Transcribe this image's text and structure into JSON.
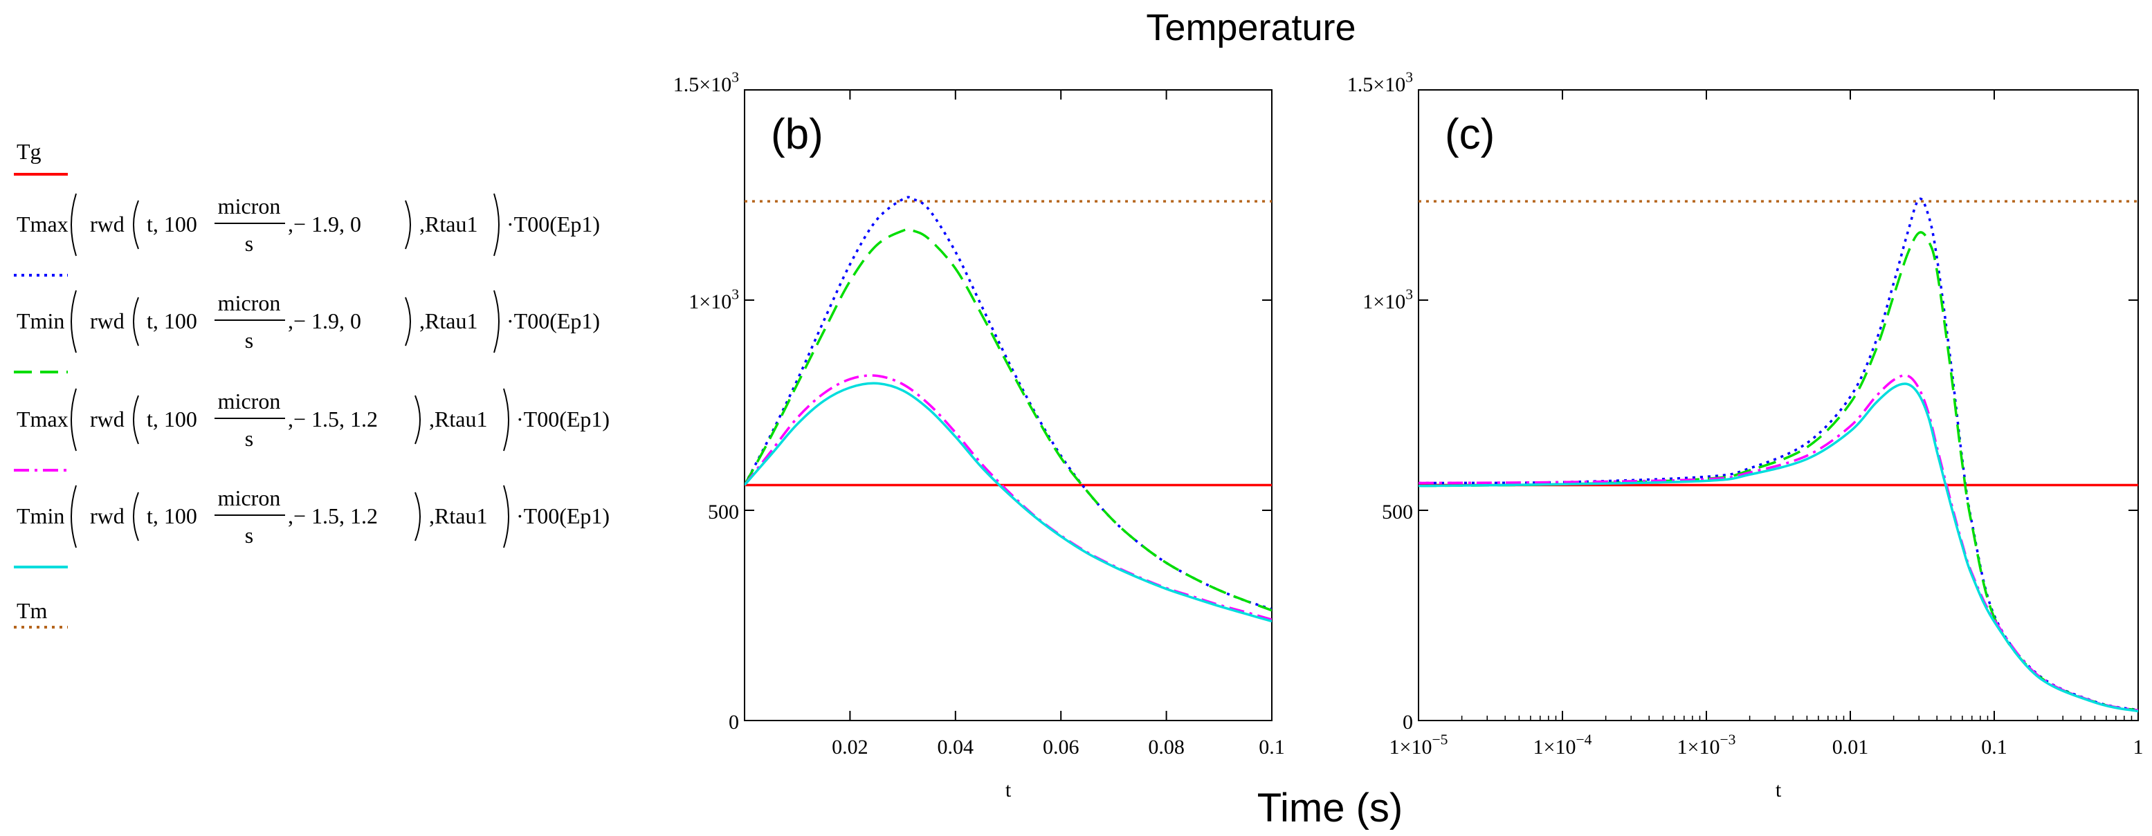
{
  "figure": {
    "title": "Temperature",
    "shared_xlabel": "Time (s)"
  },
  "legend": [
    {
      "label": "Tg",
      "color": "#ff0000",
      "dash": "solid",
      "expr": null
    },
    {
      "label": "Tmax(rwd(t, 100 micron/s, − 1.9, 0), Rtau1)·T00(Ep1)",
      "color": "#0000ff",
      "dash": "dot",
      "expr": {
        "fn": "Tmax",
        "a": "− 1.9",
        "b": "0"
      }
    },
    {
      "label": "Tmin(rwd(t, 100 micron/s, − 1.9, 0), Rtau1)·T00(Ep1)",
      "color": "#00dd00",
      "dash": "dash",
      "expr": {
        "fn": "Tmin",
        "a": "− 1.9",
        "b": "0"
      }
    },
    {
      "label": "Tmax(rwd(t, 100 micron/s, − 1.5, 1.2), Rtau1)·T00(Ep1)",
      "color": "#ff00ff",
      "dash": "dashdot",
      "expr": {
        "fn": "Tmax",
        "a": "− 1.5",
        "b": "1.2"
      }
    },
    {
      "label": "Tmin(rwd(t, 100 micron/s, − 1.5, 1.2), Rtau1)·T00(Ep1)",
      "color": "#00dddd",
      "dash": "solid",
      "expr": {
        "fn": "Tmin",
        "a": "− 1.5",
        "b": "1.2"
      }
    },
    {
      "label": "Tm",
      "color": "#b5651d",
      "dash": "dot",
      "expr": null
    }
  ],
  "expr_parts": {
    "rwd": "rwd",
    "t": "t, 100",
    "num": "micron",
    "den": "s",
    "rtau": "Rtau1",
    "t00": "·T00(Ep1)"
  },
  "colors": {
    "Tg": "#ff0000",
    "Tmax1": "#0000ff",
    "Tmin1": "#00dd00",
    "Tmax2": "#ff00ff",
    "Tmin2": "#00dddd",
    "Tm": "#b5651d"
  },
  "chart_data": [
    {
      "type": "line",
      "panel_label": "(b)",
      "xscale": "linear",
      "xlim": [
        0,
        0.1
      ],
      "ylim": [
        0,
        1500
      ],
      "xlabel": "t",
      "xticks": [
        0.02,
        0.04,
        0.06,
        0.08,
        0.1
      ],
      "xtick_labels": [
        "0.02",
        "0.04",
        "0.06",
        "0.08",
        "0.1"
      ],
      "yticks": [
        0,
        500,
        1000,
        1500
      ],
      "ytick_labels": [
        {
          "main": "0",
          "sup": ""
        },
        {
          "main": "500",
          "sup": ""
        },
        {
          "main": "1×10",
          "sup": "3"
        },
        {
          "main": "1.5×10",
          "sup": "3"
        }
      ],
      "series": [
        {
          "name": "Tg",
          "x": [
            0,
            0.1
          ],
          "y": [
            560,
            560
          ]
        },
        {
          "name": "Tm",
          "x": [
            0,
            0.1
          ],
          "y": [
            1235,
            1235
          ]
        },
        {
          "name": "Tmax(-1.9,0)",
          "x": [
            0,
            0.005,
            0.01,
            0.015,
            0.02,
            0.025,
            0.03,
            0.032,
            0.035,
            0.04,
            0.045,
            0.05,
            0.055,
            0.06,
            0.065,
            0.07,
            0.075,
            0.08,
            0.085,
            0.09,
            0.095,
            0.1
          ],
          "y": [
            560,
            680,
            810,
            950,
            1085,
            1190,
            1240,
            1240,
            1215,
            1115,
            985,
            855,
            735,
            630,
            545,
            475,
            420,
            375,
            340,
            310,
            285,
            265
          ]
        },
        {
          "name": "Tmin(-1.9,0)",
          "x": [
            0,
            0.005,
            0.01,
            0.015,
            0.02,
            0.025,
            0.03,
            0.032,
            0.035,
            0.04,
            0.045,
            0.05,
            0.055,
            0.06,
            0.065,
            0.07,
            0.075,
            0.08,
            0.085,
            0.09,
            0.095,
            0.1
          ],
          "y": [
            560,
            675,
            800,
            925,
            1045,
            1130,
            1165,
            1165,
            1145,
            1075,
            965,
            845,
            730,
            625,
            545,
            475,
            420,
            375,
            340,
            310,
            285,
            262
          ]
        },
        {
          "name": "Tmax(-1.5,1.2)",
          "x": [
            0,
            0.005,
            0.01,
            0.015,
            0.02,
            0.025,
            0.03,
            0.035,
            0.04,
            0.045,
            0.05,
            0.055,
            0.06,
            0.065,
            0.07,
            0.075,
            0.08,
            0.085,
            0.09,
            0.095,
            0.1
          ],
          "y": [
            560,
            640,
            720,
            778,
            812,
            820,
            800,
            752,
            685,
            610,
            545,
            487,
            440,
            400,
            368,
            340,
            315,
            295,
            275,
            258,
            240
          ]
        },
        {
          "name": "Tmin(-1.5,1.2)",
          "x": [
            0,
            0.005,
            0.01,
            0.015,
            0.02,
            0.025,
            0.03,
            0.035,
            0.04,
            0.045,
            0.05,
            0.055,
            0.06,
            0.065,
            0.07,
            0.075,
            0.08,
            0.085,
            0.09,
            0.095,
            0.1
          ],
          "y": [
            560,
            632,
            705,
            760,
            792,
            802,
            785,
            740,
            675,
            602,
            540,
            485,
            438,
            398,
            366,
            338,
            313,
            292,
            272,
            254,
            236
          ]
        }
      ]
    },
    {
      "type": "line",
      "panel_label": "(c)",
      "xscale": "log",
      "xlim": [
        1e-05,
        1
      ],
      "ylim": [
        0,
        1500
      ],
      "xlabel": "t",
      "xticks": [
        1e-05,
        0.0001,
        0.001,
        0.01,
        0.1,
        1
      ],
      "xtick_labels": [
        {
          "main": "1×10",
          "sup": "−5"
        },
        {
          "main": "1×10",
          "sup": "−4"
        },
        {
          "main": "1×10",
          "sup": "−3"
        },
        {
          "main": "0.01",
          "sup": ""
        },
        {
          "main": "0.1",
          "sup": ""
        },
        {
          "main": "1",
          "sup": ""
        }
      ],
      "yticks": [
        0,
        500,
        1000,
        1500
      ],
      "ytick_labels": [
        {
          "main": "0",
          "sup": ""
        },
        {
          "main": "500",
          "sup": ""
        },
        {
          "main": "1×10",
          "sup": "3"
        },
        {
          "main": "1.5×10",
          "sup": "3"
        }
      ],
      "series": [
        {
          "name": "Tg",
          "x": [
            1e-05,
            1
          ],
          "y": [
            560,
            560
          ]
        },
        {
          "name": "Tm",
          "x": [
            1e-05,
            1
          ],
          "y": [
            1235,
            1235
          ]
        },
        {
          "name": "Tmax(-1.9,0)",
          "x": [
            1e-05,
            0.0001,
            0.001,
            0.002,
            0.005,
            0.01,
            0.015,
            0.02,
            0.025,
            0.03,
            0.035,
            0.04,
            0.05,
            0.06,
            0.07,
            0.1,
            0.2,
            0.5,
            1
          ],
          "y": [
            565,
            567,
            580,
            600,
            660,
            770,
            900,
            1040,
            1160,
            1240,
            1200,
            1100,
            850,
            620,
            470,
            250,
            110,
            45,
            25
          ]
        },
        {
          "name": "Tmin(-1.9,0)",
          "x": [
            1e-05,
            0.0001,
            0.001,
            0.002,
            0.005,
            0.01,
            0.015,
            0.02,
            0.025,
            0.03,
            0.035,
            0.04,
            0.05,
            0.06,
            0.07,
            0.1,
            0.2,
            0.5,
            1
          ],
          "y": [
            558,
            562,
            575,
            595,
            650,
            755,
            880,
            1010,
            1110,
            1160,
            1140,
            1070,
            830,
            610,
            465,
            245,
            108,
            44,
            24
          ]
        },
        {
          "name": "Tmax(-1.5,1.2)",
          "x": [
            1e-05,
            0.0001,
            0.001,
            0.002,
            0.005,
            0.01,
            0.015,
            0.02,
            0.025,
            0.03,
            0.035,
            0.04,
            0.05,
            0.06,
            0.07,
            0.1,
            0.2,
            0.5,
            1
          ],
          "y": [
            565,
            567,
            574,
            590,
            630,
            700,
            770,
            810,
            820,
            790,
            730,
            650,
            520,
            420,
            350,
            240,
            108,
            44,
            24
          ]
        },
        {
          "name": "Tmin(-1.5,1.2)",
          "x": [
            1e-05,
            0.0001,
            0.001,
            0.002,
            0.005,
            0.01,
            0.015,
            0.02,
            0.025,
            0.03,
            0.035,
            0.04,
            0.05,
            0.06,
            0.07,
            0.1,
            0.2,
            0.5,
            1
          ],
          "y": [
            558,
            562,
            570,
            585,
            622,
            688,
            755,
            792,
            800,
            775,
            720,
            640,
            512,
            415,
            345,
            235,
            105,
            43,
            22
          ]
        }
      ]
    }
  ]
}
